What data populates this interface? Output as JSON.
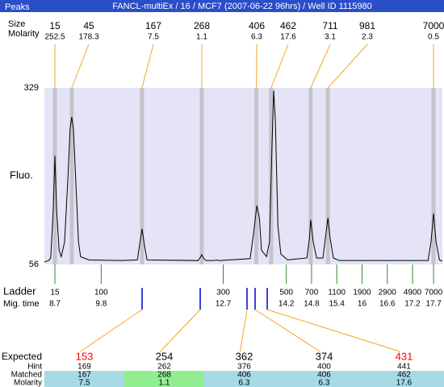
{
  "chart_data": {
    "type": "line",
    "title": "FANCL-multiEx / 16 / MCF7 (2007-06-22 96hrs) / Well ID 1115980",
    "y_label": "Fluo.",
    "xlim": [
      8.45,
      17.91
    ],
    "ylim": [
      56,
      329
    ],
    "yticks": [
      56,
      329
    ],
    "x": [
      8.45,
      8.55,
      8.6,
      8.66,
      8.7,
      8.74,
      8.8,
      8.85,
      8.93,
      9.01,
      9.06,
      9.1,
      9.14,
      9.2,
      9.26,
      9.31,
      9.51,
      10.27,
      10.66,
      10.71,
      10.77,
      10.83,
      10.89,
      12.1,
      12.15,
      12.19,
      12.23,
      12.29,
      12.48,
      12.54,
      12.6,
      13.34,
      13.42,
      13.5,
      13.56,
      13.61,
      13.73,
      13.8,
      13.86,
      13.9,
      13.94,
      14.0,
      14.07,
      14.23,
      14.69,
      14.75,
      14.78,
      14.84,
      14.92,
      15.07,
      15.13,
      15.19,
      15.24,
      15.32,
      15.46,
      17.57,
      17.64,
      17.7,
      17.76,
      17.84,
      17.91
    ],
    "series": [
      {
        "color": "#000000",
        "values": [
          60,
          62,
          66,
          141,
          224,
          141,
          78,
          68,
          91,
          191,
          265,
          284,
          265,
          179,
          91,
          68,
          63,
          62,
          63,
          85,
          111,
          85,
          63,
          62,
          66,
          71,
          66,
          62,
          62,
          63,
          62,
          65,
          103,
          147,
          128,
          78,
          68,
          91,
          240,
          325,
          278,
          116,
          72,
          63,
          66,
          97,
          125,
          91,
          66,
          66,
          97,
          128,
          97,
          66,
          62,
          62,
          91,
          135,
          91,
          63,
          61
        ]
      }
    ],
    "plot_color": "#e4e4f6",
    "band_color": "#c4c4cc",
    "peaks": {
      "title": "Peaks",
      "row_labels": [
        "Size",
        "Molarity"
      ],
      "sizes": [
        15,
        45,
        167,
        268,
        406,
        462,
        711,
        981,
        7000
      ],
      "molarity": [
        252.5,
        178.3,
        7.5,
        1.1,
        6.3,
        17.6,
        3.1,
        2.3,
        0.5
      ],
      "mig_times": [
        8.7,
        9.1,
        10.77,
        12.19,
        13.49,
        13.84,
        14.78,
        15.19,
        17.7
      ]
    },
    "ladder": {
      "label": "Ladder",
      "time_label": "Mig. time",
      "sizes": [
        15,
        100,
        300,
        500,
        700,
        1100,
        1900,
        2900,
        4900,
        7000
      ],
      "mig_times": [
        8.7,
        9.8,
        12.7,
        14.2,
        14.8,
        15.4,
        16,
        16.6,
        17.2,
        17.7
      ]
    },
    "matching": {
      "row_labels": [
        "Expected",
        "Hint",
        "Matched",
        "Molarity"
      ],
      "expected": [
        153,
        254,
        362,
        374,
        431
      ],
      "expected_colors": [
        "#ff0000",
        "#000000",
        "#000000",
        "#000000",
        "#ff0000"
      ],
      "hint": [
        169,
        262,
        376,
        400,
        441
      ],
      "matched": [
        167,
        268,
        406,
        406,
        462
      ],
      "matched_colors": [
        "#a6dbe6",
        "#90ee90",
        "#a6dbe6",
        "#a6dbe6",
        "#a6dbe6"
      ],
      "molarity": [
        7.5,
        1.1,
        6.3,
        6.3,
        17.6
      ]
    }
  }
}
